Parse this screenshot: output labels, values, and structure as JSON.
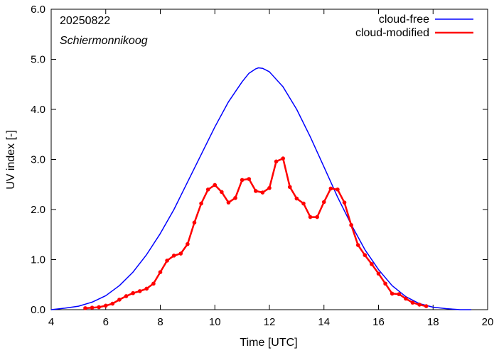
{
  "chart_data": {
    "type": "line",
    "title": "",
    "xlabel": "Time  [UTC]",
    "ylabel": "UV index  [-]",
    "xlim": [
      4,
      20
    ],
    "ylim": [
      0,
      6
    ],
    "x_ticks": [
      4,
      6,
      8,
      10,
      12,
      14,
      16,
      18,
      20
    ],
    "y_ticks": [
      "0.0",
      "1.0",
      "2.0",
      "3.0",
      "4.0",
      "5.0",
      "6.0"
    ],
    "grid": false,
    "legend_position": "top-right",
    "annotations": [
      "20250822",
      "Schiermonnikoog"
    ],
    "series": [
      {
        "name": "cloud-free",
        "color": "#0000ff",
        "style": "line",
        "x": [
          4.0,
          4.5,
          5.0,
          5.5,
          6.0,
          6.5,
          7.0,
          7.5,
          8.0,
          8.5,
          9.0,
          9.5,
          10.0,
          10.5,
          11.0,
          11.25,
          11.5,
          11.6,
          11.75,
          12.0,
          12.5,
          13.0,
          13.5,
          14.0,
          14.5,
          15.0,
          15.5,
          16.0,
          16.5,
          17.0,
          17.5,
          18.0,
          18.5,
          19.0,
          19.4
        ],
        "y": [
          0.0,
          0.03,
          0.07,
          0.15,
          0.28,
          0.48,
          0.75,
          1.1,
          1.52,
          2.0,
          2.55,
          3.1,
          3.65,
          4.15,
          4.55,
          4.72,
          4.81,
          4.83,
          4.82,
          4.75,
          4.45,
          4.0,
          3.45,
          2.85,
          2.25,
          1.7,
          1.2,
          0.8,
          0.48,
          0.26,
          0.12,
          0.05,
          0.02,
          0.0,
          0.0
        ]
      },
      {
        "name": "cloud-modified",
        "color": "#ff0000",
        "style": "line-points",
        "x": [
          5.25,
          5.5,
          5.75,
          6.0,
          6.25,
          6.5,
          6.75,
          7.0,
          7.25,
          7.5,
          7.75,
          8.0,
          8.25,
          8.5,
          8.75,
          9.0,
          9.25,
          9.5,
          9.75,
          10.0,
          10.25,
          10.5,
          10.75,
          11.0,
          11.25,
          11.5,
          11.75,
          12.0,
          12.25,
          12.5,
          12.75,
          13.0,
          13.25,
          13.5,
          13.75,
          14.0,
          14.25,
          14.5,
          14.75,
          15.0,
          15.25,
          15.5,
          15.75,
          16.0,
          16.25,
          16.5,
          16.75,
          17.0,
          17.25,
          17.5,
          17.75
        ],
        "y": [
          0.03,
          0.04,
          0.05,
          0.08,
          0.12,
          0.2,
          0.27,
          0.33,
          0.37,
          0.42,
          0.52,
          0.75,
          0.98,
          1.08,
          1.12,
          1.31,
          1.74,
          2.12,
          2.4,
          2.49,
          2.35,
          2.14,
          2.23,
          2.59,
          2.61,
          2.37,
          2.34,
          2.43,
          2.96,
          3.02,
          2.45,
          2.22,
          2.12,
          1.85,
          1.85,
          2.15,
          2.42,
          2.4,
          2.14,
          1.69,
          1.29,
          1.09,
          0.91,
          0.72,
          0.52,
          0.32,
          0.31,
          0.22,
          0.14,
          0.1,
          0.07
        ]
      }
    ]
  }
}
